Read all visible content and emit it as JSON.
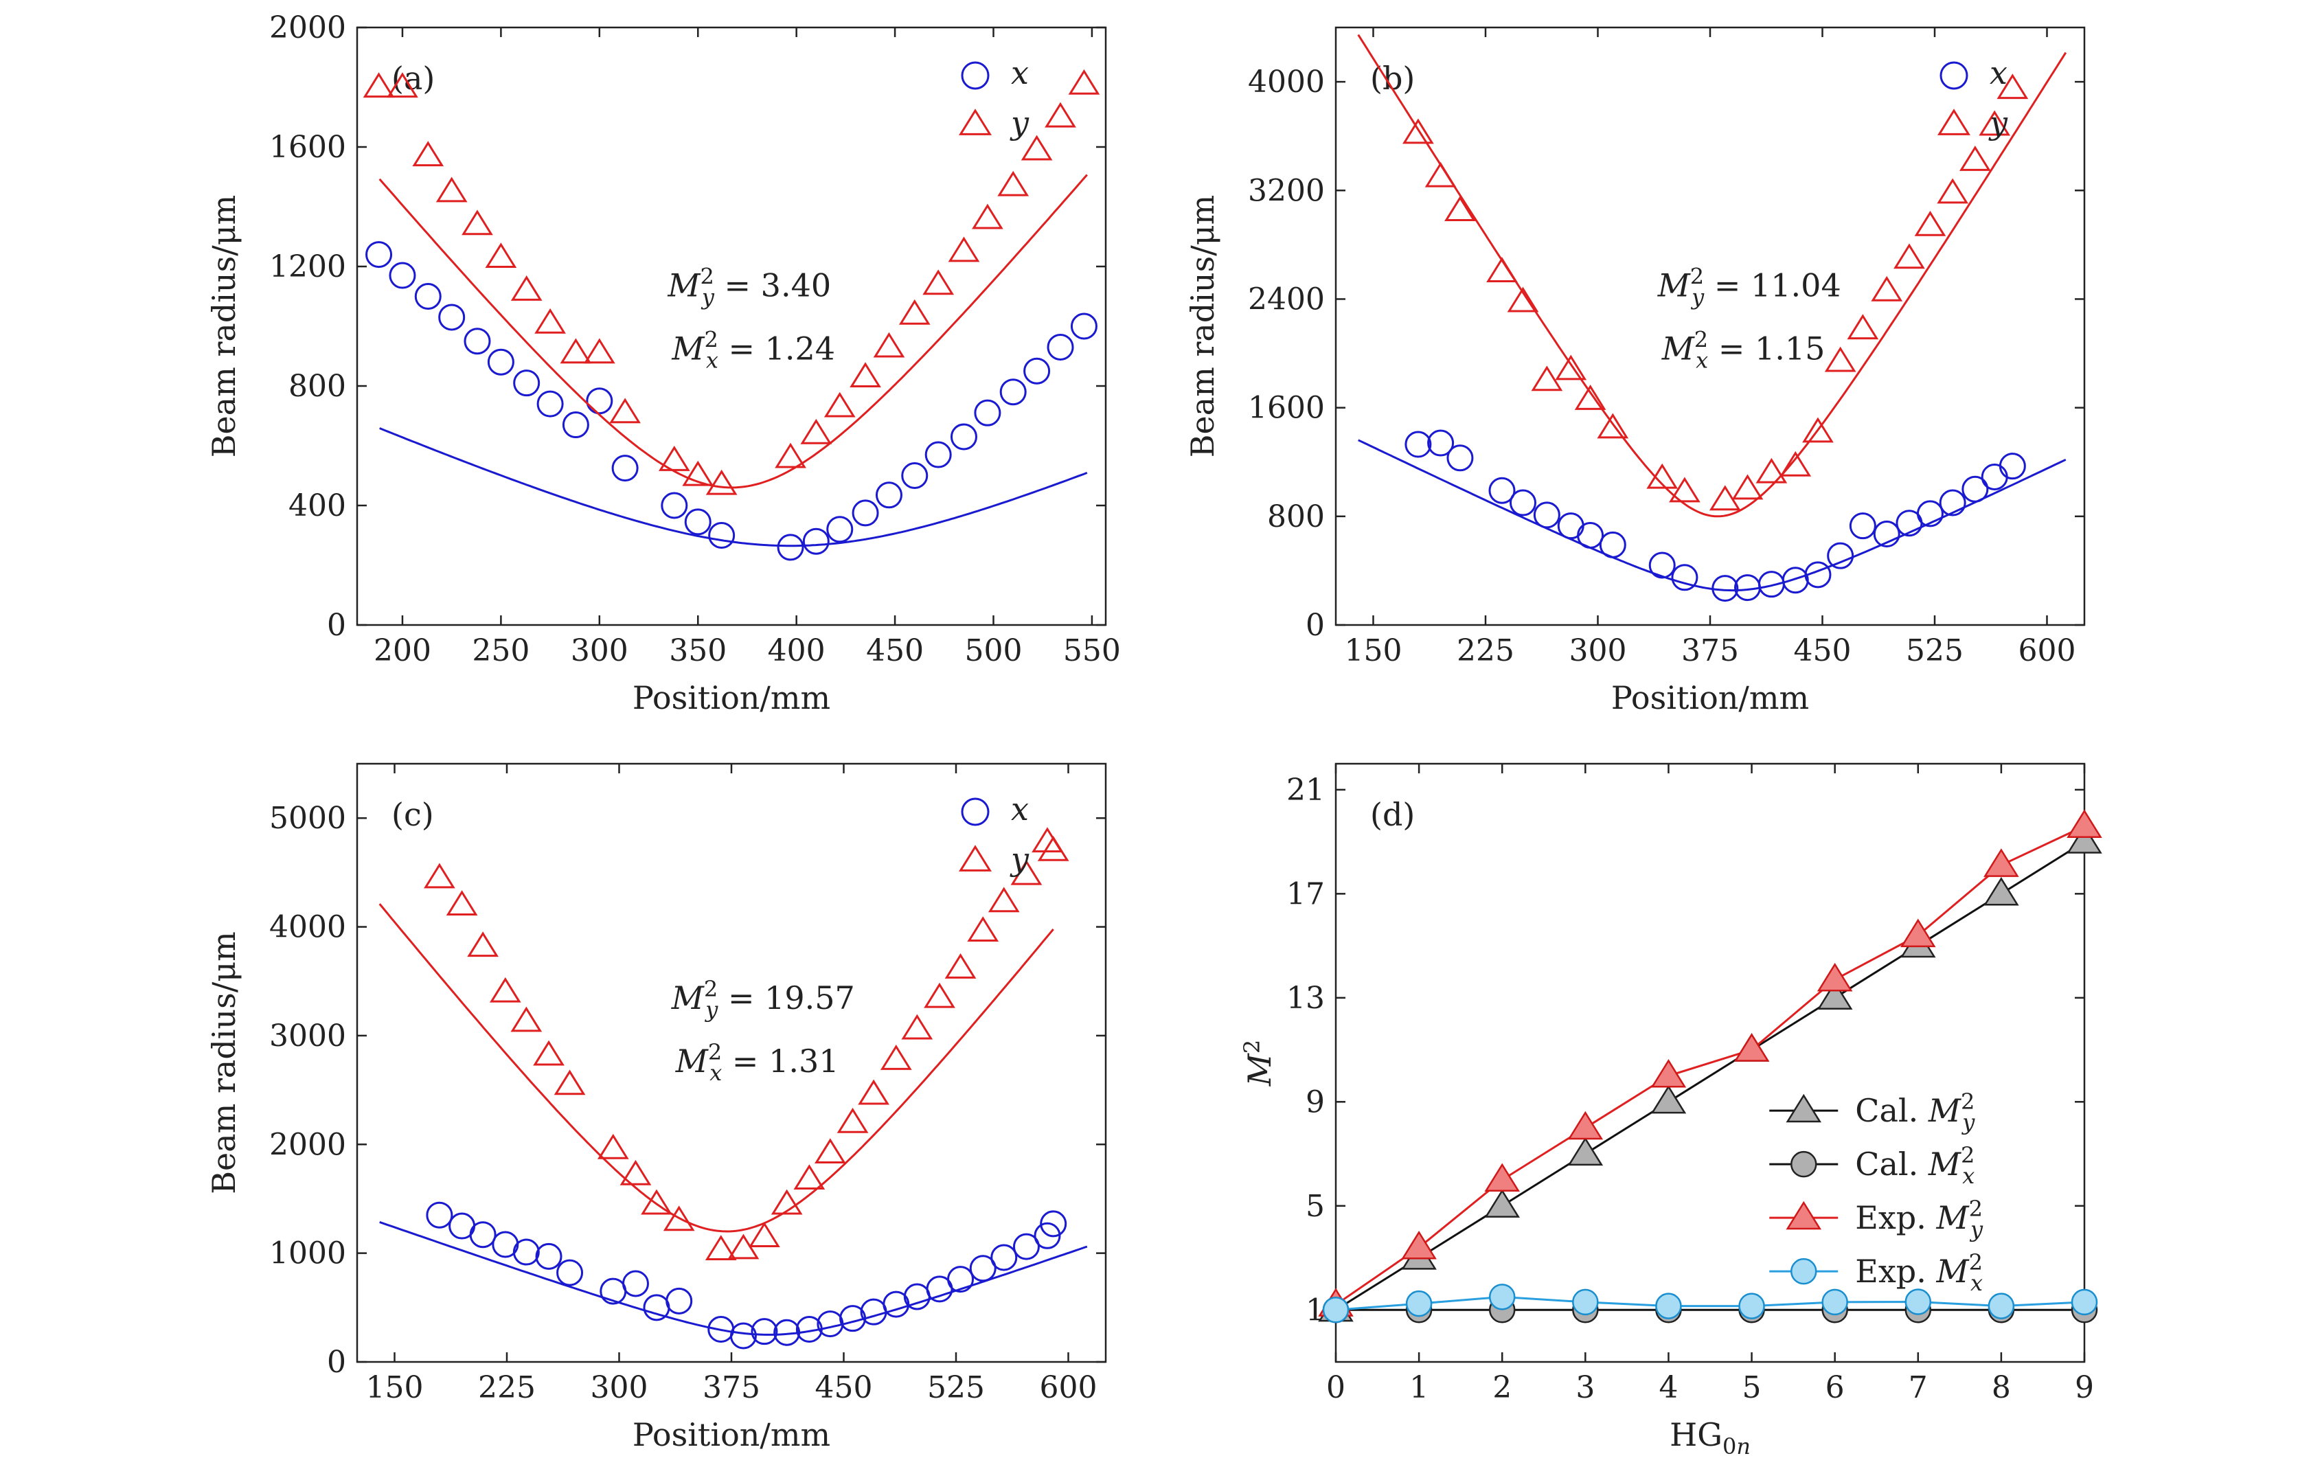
{
  "chart_data": [
    {
      "panel": "(a)",
      "type": "scatter",
      "xlabel": "Position/mm",
      "ylabel": "Beam radius/μm",
      "xlim": [
        177,
        557
      ],
      "ylim": [
        0,
        2000
      ],
      "xticks": [
        200,
        250,
        300,
        350,
        400,
        450,
        500,
        550
      ],
      "yticks": [
        0,
        400,
        800,
        1200,
        1600,
        2000
      ],
      "legend_position": "top-right",
      "annotations": [
        {
          "text": "M²y = 3.40",
          "color": "#e02020"
        },
        {
          "text": "M²x = 1.24",
          "color": "#1a1ad0"
        }
      ],
      "series": [
        {
          "name": "x",
          "marker": "circle",
          "color": "#1a1ad0",
          "points": [
            [
              188,
              1240
            ],
            [
              200,
              1170
            ],
            [
              213,
              1100
            ],
            [
              225,
              1030
            ],
            [
              238,
              950
            ],
            [
              250,
              880
            ],
            [
              263,
              810
            ],
            [
              275,
              740
            ],
            [
              288,
              670
            ],
            [
              300,
              750
            ],
            [
              313,
              525
            ],
            [
              338,
              400
            ],
            [
              350,
              345
            ],
            [
              362,
              300
            ],
            [
              397,
              260
            ],
            [
              410,
              280
            ],
            [
              422,
              320
            ],
            [
              435,
              375
            ],
            [
              447,
              435
            ],
            [
              460,
              500
            ],
            [
              472,
              570
            ],
            [
              485,
              630
            ],
            [
              497,
              710
            ],
            [
              510,
              780
            ],
            [
              522,
              850
            ],
            [
              534,
              930
            ],
            [
              546,
              1000
            ]
          ],
          "fit": {
            "w0": 265,
            "x0": 397,
            "k": 2.89
          }
        },
        {
          "name": "y",
          "marker": "triangle",
          "color": "#e02020",
          "points": [
            [
              188,
              1800
            ],
            [
              200,
              1800
            ],
            [
              213,
              1570
            ],
            [
              225,
              1450
            ],
            [
              238,
              1340
            ],
            [
              250,
              1230
            ],
            [
              263,
              1120
            ],
            [
              275,
              1010
            ],
            [
              288,
              910
            ],
            [
              300,
              910
            ],
            [
              313,
              710
            ],
            [
              338,
              550
            ],
            [
              350,
              500
            ],
            [
              362,
              470
            ],
            [
              397,
              560
            ],
            [
              410,
              640
            ],
            [
              422,
              730
            ],
            [
              435,
              830
            ],
            [
              447,
              930
            ],
            [
              460,
              1040
            ],
            [
              472,
              1140
            ],
            [
              485,
              1250
            ],
            [
              497,
              1360
            ],
            [
              510,
              1470
            ],
            [
              522,
              1590
            ],
            [
              534,
              1700
            ],
            [
              546,
              1810
            ]
          ],
          "fit": {
            "w0": 460,
            "x0": 367,
            "k": 7.95
          }
        }
      ]
    },
    {
      "panel": "(b)",
      "type": "scatter",
      "xlabel": "Position/mm",
      "ylabel": "Beam radius/μm",
      "xlim": [
        125,
        625
      ],
      "ylim": [
        0,
        4400
      ],
      "xticks": [
        150,
        225,
        300,
        375,
        450,
        525,
        600
      ],
      "yticks": [
        0,
        800,
        1600,
        2400,
        3200,
        4000
      ],
      "legend_position": "top-right",
      "annotations": [
        {
          "text": "M²y = 11.04",
          "color": "#e02020"
        },
        {
          "text": "M²x = 1.15",
          "color": "#1a1ad0"
        }
      ],
      "series": [
        {
          "name": "x",
          "marker": "circle",
          "color": "#1a1ad0",
          "points": [
            [
              180,
              1330
            ],
            [
              195,
              1340
            ],
            [
              208,
              1230
            ],
            [
              236,
              990
            ],
            [
              250,
              900
            ],
            [
              266,
              810
            ],
            [
              282,
              730
            ],
            [
              295,
              660
            ],
            [
              310,
              590
            ],
            [
              343,
              440
            ],
            [
              358,
              350
            ],
            [
              385,
              270
            ],
            [
              400,
              275
            ],
            [
              416,
              300
            ],
            [
              432,
              330
            ],
            [
              447,
              370
            ],
            [
              462,
              510
            ],
            [
              477,
              730
            ],
            [
              493,
              670
            ],
            [
              508,
              750
            ],
            [
              522,
              820
            ],
            [
              537,
              900
            ],
            [
              552,
              1000
            ],
            [
              565,
              1090
            ],
            [
              577,
              1170
            ]
          ],
          "fit": {
            "w0": 255,
            "x0": 390,
            "k": 5.35
          }
        },
        {
          "name": "y",
          "marker": "triangle",
          "color": "#e02020",
          "points": [
            [
              180,
              3620
            ],
            [
              195,
              3300
            ],
            [
              208,
              3050
            ],
            [
              236,
              2600
            ],
            [
              250,
              2380
            ],
            [
              266,
              1800
            ],
            [
              282,
              1880
            ],
            [
              295,
              1660
            ],
            [
              310,
              1450
            ],
            [
              343,
              1080
            ],
            [
              358,
              980
            ],
            [
              385,
              920
            ],
            [
              400,
              1000
            ],
            [
              416,
              1120
            ],
            [
              432,
              1170
            ],
            [
              447,
              1420
            ],
            [
              462,
              1940
            ],
            [
              477,
              2180
            ],
            [
              493,
              2460
            ],
            [
              508,
              2700
            ],
            [
              522,
              2940
            ],
            [
              537,
              3180
            ],
            [
              552,
              3420
            ],
            [
              565,
              3680
            ],
            [
              577,
              3950
            ]
          ],
          "fit": {
            "w0": 800,
            "x0": 380,
            "k": 17.8
          }
        }
      ]
    },
    {
      "panel": "(c)",
      "type": "scatter",
      "xlabel": "Position/mm",
      "ylabel": "Beam radius/μm",
      "xlim": [
        125,
        625
      ],
      "ylim": [
        0,
        5500
      ],
      "xticks": [
        150,
        225,
        300,
        375,
        450,
        525,
        600
      ],
      "yticks": [
        0,
        1000,
        2000,
        3000,
        4000,
        5000
      ],
      "legend_position": "top-right",
      "annotations": [
        {
          "text": "M²y = 19.57",
          "color": "#e02020"
        },
        {
          "text": "M²x = 1.31",
          "color": "#1a1ad0"
        }
      ],
      "series": [
        {
          "name": "x",
          "marker": "circle",
          "color": "#1a1ad0",
          "points": [
            [
              180,
              1350
            ],
            [
              195,
              1250
            ],
            [
              209,
              1170
            ],
            [
              224,
              1080
            ],
            [
              238,
              1010
            ],
            [
              253,
              970
            ],
            [
              267,
              820
            ],
            [
              296,
              650
            ],
            [
              311,
              720
            ],
            [
              325,
              500
            ],
            [
              340,
              560
            ],
            [
              368,
              300
            ],
            [
              383,
              240
            ],
            [
              397,
              280
            ],
            [
              412,
              270
            ],
            [
              427,
              300
            ],
            [
              441,
              350
            ],
            [
              456,
              400
            ],
            [
              470,
              460
            ],
            [
              485,
              530
            ],
            [
              499,
              600
            ],
            [
              514,
              670
            ],
            [
              528,
              760
            ],
            [
              543,
              860
            ],
            [
              557,
              960
            ],
            [
              572,
              1060
            ],
            [
              586,
              1160
            ],
            [
              590,
              1270
            ]
          ],
          "fit": {
            "w0": 250,
            "x0": 400,
            "k": 4.85
          }
        },
        {
          "name": "y",
          "marker": "triangle",
          "color": "#e02020",
          "points": [
            [
              180,
              4450
            ],
            [
              195,
              4200
            ],
            [
              209,
              3820
            ],
            [
              224,
              3400
            ],
            [
              238,
              3130
            ],
            [
              253,
              2820
            ],
            [
              267,
              2550
            ],
            [
              296,
              1960
            ],
            [
              311,
              1720
            ],
            [
              325,
              1450
            ],
            [
              340,
              1300
            ],
            [
              368,
              1030
            ],
            [
              383,
              1040
            ],
            [
              397,
              1150
            ],
            [
              412,
              1450
            ],
            [
              427,
              1680
            ],
            [
              441,
              1920
            ],
            [
              456,
              2200
            ],
            [
              470,
              2460
            ],
            [
              485,
              2780
            ],
            [
              499,
              3060
            ],
            [
              514,
              3350
            ],
            [
              528,
              3620
            ],
            [
              543,
              3960
            ],
            [
              557,
              4230
            ],
            [
              572,
              4480
            ],
            [
              586,
              4780
            ],
            [
              590,
              4700
            ]
          ],
          "fit": {
            "w0": 1200,
            "x0": 372,
            "k": 17.4,
            "xmax": 590
          }
        }
      ]
    },
    {
      "panel": "(d)",
      "type": "line",
      "xlabel": "HG0n",
      "ylabel": "M²",
      "xlim": [
        0,
        9
      ],
      "ylim": [
        -1,
        22
      ],
      "xticks": [
        0,
        1,
        2,
        3,
        4,
        5,
        6,
        7,
        8,
        9
      ],
      "yticks": [
        1,
        5,
        9,
        13,
        17,
        21
      ],
      "legend_position": "bottom-right",
      "series": [
        {
          "name": "Cal. M²y",
          "marker": "triangle",
          "fill": "#b0b0b0",
          "stroke": "#222222",
          "line": "#111111",
          "values": [
            1,
            3,
            5,
            7,
            9,
            11,
            13,
            15,
            17,
            19
          ]
        },
        {
          "name": "Cal. M²x",
          "marker": "circle",
          "fill": "#b0b0b0",
          "stroke": "#222222",
          "line": "#111111",
          "values": [
            1,
            1,
            1,
            1,
            1,
            1,
            1,
            1,
            1,
            1
          ]
        },
        {
          "name": "Exp. M²y",
          "marker": "triangle",
          "fill": "#f08080",
          "stroke": "#d01818",
          "line": "#e02020",
          "values": [
            1.2,
            3.4,
            6,
            8,
            10,
            11,
            13.7,
            15.4,
            18.1,
            19.6
          ]
        },
        {
          "name": "Exp. M²x",
          "marker": "circle",
          "fill": "#a8dcf4",
          "stroke": "#1a8fd0",
          "line": "#2a9fe0",
          "values": [
            1.0,
            1.24,
            1.5,
            1.3,
            1.15,
            1.15,
            1.3,
            1.31,
            1.15,
            1.3
          ]
        }
      ]
    }
  ]
}
